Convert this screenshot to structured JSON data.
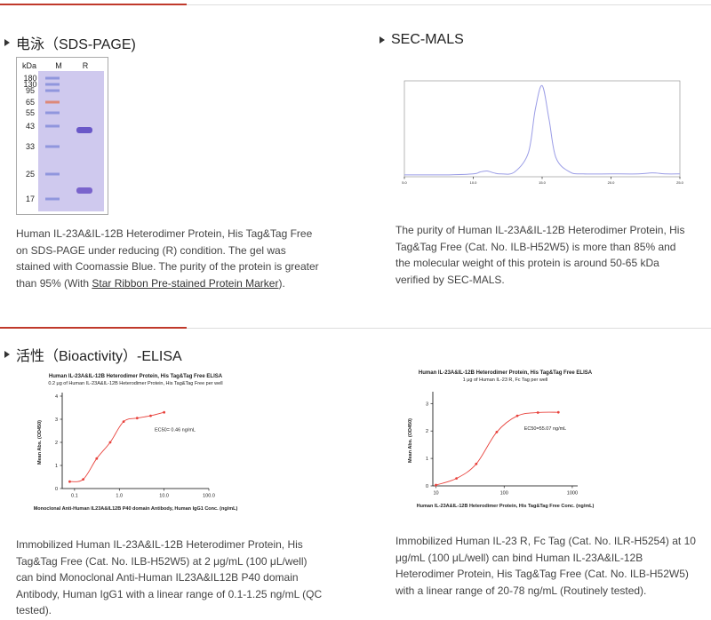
{
  "sds_page": {
    "heading": "电泳（SDS-PAGE)",
    "gel": {
      "header": [
        "kDa",
        "M",
        "R"
      ],
      "markers": [
        "180",
        "130",
        "95",
        "65",
        "55",
        "43",
        "33",
        "25",
        "17"
      ]
    },
    "text": "Human IL-23A&IL-12B Heterodimer Protein, His Tag&Tag Free on SDS-PAGE under reducing (R) condition. The gel was stained with Coomassie Blue. The purity of the protein is greater than 95% (With ",
    "link": "Star Ribbon Pre-stained Protein Marker",
    "text_end": ")."
  },
  "sec_mals": {
    "heading": "SEC-MALS",
    "text": "The purity of Human IL-23A&IL-12B Heterodimer Protein, His Tag&Tag Free (Cat. No. ILB-H52W5) is more than 85% and the molecular weight of this protein is around 50-65 kDa verified by SEC-MALS."
  },
  "elisa": {
    "heading": "活性（Bioactivity）-ELISA",
    "text_left": "Immobilized Human IL-23A&IL-12B Heterodimer Protein, His Tag&Tag Free (Cat. No. ILB-H52W5) at 2 μg/mL (100 μL/well) can bind Monoclonal Anti-Human IL23A&IL12B P40 domain Antibody, Human IgG1 with a linear range of 0.1-1.25 ng/mL (QC tested).",
    "text_right": "Immobilized Human IL-23 R, Fc Tag (Cat. No. ILR-H5254) at 10 μg/mL (100 μL/well) can bind Human IL-23A&IL-12B Heterodimer Protein, His Tag&Tag Free (Cat. No. ILB-H52W5) with a linear range of 20-78 ng/mL (Routinely tested)."
  },
  "chart_data": [
    {
      "type": "line",
      "x": [
        5,
        8,
        10,
        10.5,
        11,
        11.5,
        12,
        13,
        14,
        14.5,
        15,
        15.5,
        16,
        17,
        18,
        20,
        22,
        23,
        24,
        25
      ],
      "values": [
        0.02,
        0.02,
        0.03,
        0.05,
        0.06,
        0.04,
        0.03,
        0.05,
        0.25,
        0.7,
        0.95,
        0.6,
        0.2,
        0.05,
        0.03,
        0.03,
        0.03,
        0.04,
        0.03,
        0.03
      ],
      "color": "#9a9ce6",
      "xlim": [
        5,
        25
      ],
      "ylim": [
        0,
        1
      ],
      "xticks": [
        {
          "value": 5,
          "label": "5.0"
        },
        {
          "value": 10,
          "label": "10.0"
        },
        {
          "value": 15,
          "label": "15.0"
        },
        {
          "value": 20,
          "label": "20.0"
        },
        {
          "value": 25,
          "label": "25.0"
        }
      ]
    },
    {
      "type": "scatter",
      "title": "Human IL-23A&IL-12B Heterodimer Protein, His Tag&Tag Free ELISA",
      "subtitle": "0.2 μg of Human IL-23A&IL-12B Heterodimer Protein, His Tag&Tag Free per well",
      "x_label": "Monoclonal Anti-Human IL23A&IL12B P40 domain Antibody, Human IgG1 Conc. (ng/mL)",
      "y_label": "Mean Abs. (OD450)",
      "annotation": "EC50= 0.46 ng/mL",
      "x": [
        0.078,
        0.156,
        0.3125,
        0.625,
        1.25,
        2.5,
        5,
        10
      ],
      "values": [
        0.3,
        0.4,
        1.3,
        2.0,
        2.9,
        3.05,
        3.15,
        3.3
      ],
      "color": "#e8423c",
      "log_x": true,
      "xlim": [
        0.053,
        100
      ],
      "ylim": [
        0,
        4
      ],
      "xticks": [
        0.1,
        {
          "value": 1,
          "label": "1.0"
        },
        {
          "value": 10,
          "label": "10.0"
        },
        {
          "value": 100,
          "label": "100.0"
        }
      ],
      "yticks": [
        0,
        1,
        2,
        3,
        4
      ]
    },
    {
      "type": "scatter",
      "title": "Human IL-23A&IL-12B Heterodimer Protein, His Tag&Tag Free ELISA",
      "subtitle": "1 μg of Human IL-23 R, Fc Tag per well",
      "x_label": "Human IL-23A&IL-12B Heterodimer Protein, His Tag&Tag Free Conc. (ng/mL)",
      "y_label": "Mean Abs. (OD450)",
      "annotation": "EC50=55.07 ng/mL",
      "x": [
        10,
        20,
        39,
        78,
        156,
        313,
        625
      ],
      "values": [
        0.03,
        0.27,
        0.8,
        1.96,
        2.55,
        2.67,
        2.68
      ],
      "color": "#e8423c",
      "log_x": true,
      "xlim": [
        9,
        1200
      ],
      "ylim": [
        0,
        3.3
      ],
      "xticks": [
        10,
        100,
        1000
      ],
      "yticks": [
        0,
        1,
        2,
        3
      ]
    }
  ]
}
